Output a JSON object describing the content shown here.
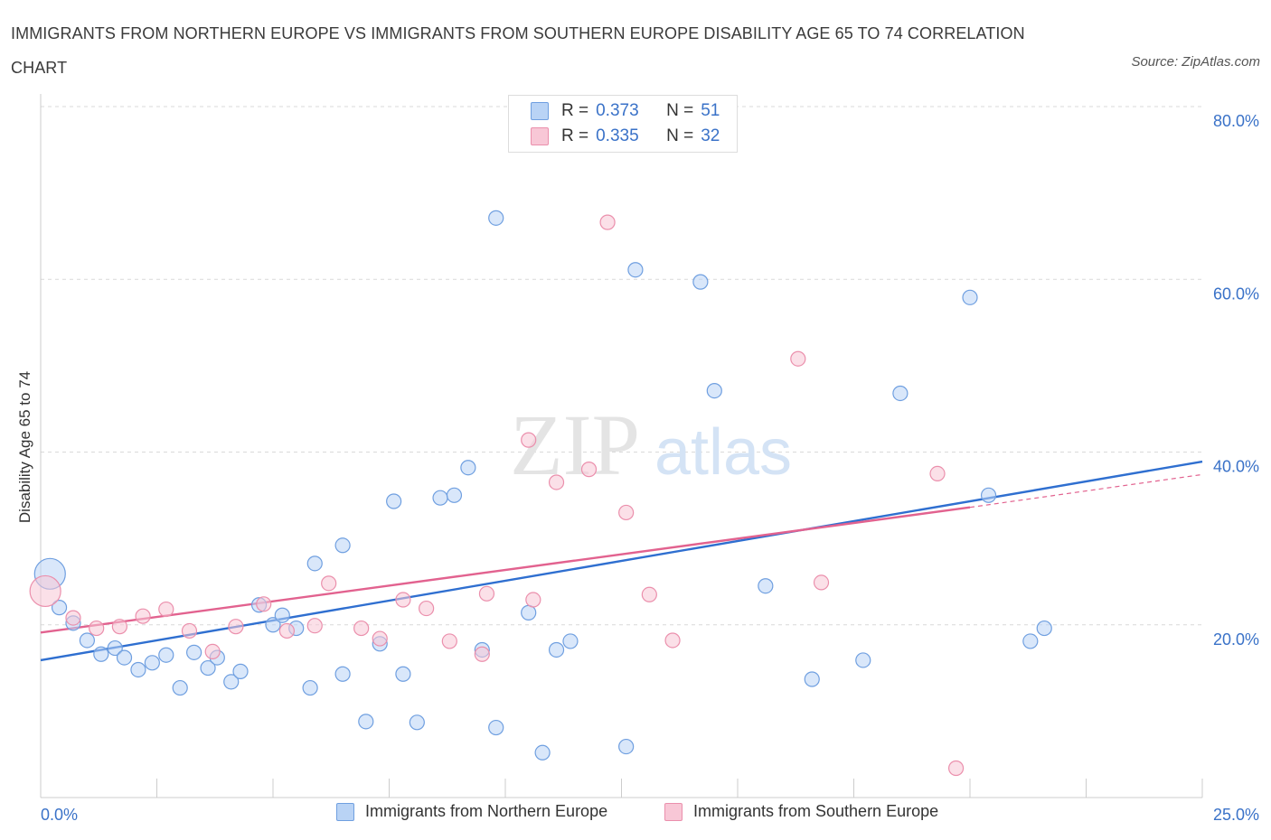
{
  "header": {
    "title": "IMMIGRANTS FROM NORTHERN EUROPE VS IMMIGRANTS FROM SOUTHERN EUROPE DISABILITY AGE 65 TO 74 CORRELATION CHART",
    "source": "Source: ZipAtlas.com"
  },
  "watermark": {
    "zip": "ZIP",
    "atlas": "atlas"
  },
  "legend_top": {
    "rows": [
      {
        "r_label": "R =",
        "r_value": "0.373",
        "n_label": "N =",
        "n_value": "51"
      },
      {
        "r_label": "R =",
        "r_value": "0.335",
        "n_label": "N =",
        "n_value": "32"
      }
    ]
  },
  "legend_bottom": {
    "items": [
      {
        "label": "Immigrants from Northern Europe"
      },
      {
        "label": "Immigrants from Southern Europe"
      }
    ]
  },
  "colors": {
    "blue_fill": "#b9d3f5",
    "blue_stroke": "#6f9fe0",
    "blue_line": "#2f6fd0",
    "pink_fill": "#f8c7d6",
    "pink_stroke": "#eb8fac",
    "pink_line": "#e2628f",
    "tick_label": "#3a72c8",
    "grid": "#d9d9d9"
  },
  "chart_data": {
    "type": "scatter",
    "title": "IMMIGRANTS FROM NORTHERN EUROPE VS IMMIGRANTS FROM SOUTHERN EUROPE DISABILITY AGE 65 TO 74 CORRELATION CHART",
    "xlabel": "",
    "ylabel": "Disability Age 65 to 74",
    "xlim": [
      0,
      25
    ],
    "ylim": [
      0,
      80
    ],
    "x_tick_labels": [
      "0.0%",
      "25.0%"
    ],
    "y_ticks": [
      20,
      40,
      60,
      80
    ],
    "y_tick_labels": [
      "20.0%",
      "40.0%",
      "60.0%",
      "80.0%"
    ],
    "grid": true,
    "legend_position": "top-center",
    "series": [
      {
        "name": "Immigrants from Northern Europe",
        "color": "blue",
        "r": 0.373,
        "n": 51,
        "trend": {
          "x": [
            0,
            25
          ],
          "y": [
            15.9,
            38.9
          ]
        },
        "points": [
          {
            "x": 0.2,
            "y": 25.9,
            "big": true
          },
          {
            "x": 0.4,
            "y": 22.0
          },
          {
            "x": 0.7,
            "y": 20.2
          },
          {
            "x": 1.0,
            "y": 18.2
          },
          {
            "x": 1.3,
            "y": 16.6
          },
          {
            "x": 1.6,
            "y": 17.3
          },
          {
            "x": 1.8,
            "y": 16.2
          },
          {
            "x": 2.1,
            "y": 14.8
          },
          {
            "x": 2.4,
            "y": 15.6
          },
          {
            "x": 2.7,
            "y": 16.5
          },
          {
            "x": 3.0,
            "y": 12.7
          },
          {
            "x": 3.3,
            "y": 16.8
          },
          {
            "x": 3.6,
            "y": 15.0
          },
          {
            "x": 3.8,
            "y": 16.2
          },
          {
            "x": 4.1,
            "y": 13.4
          },
          {
            "x": 4.3,
            "y": 14.6
          },
          {
            "x": 4.7,
            "y": 22.3
          },
          {
            "x": 5.0,
            "y": 20.0
          },
          {
            "x": 5.2,
            "y": 21.1
          },
          {
            "x": 5.5,
            "y": 19.6
          },
          {
            "x": 5.9,
            "y": 27.1
          },
          {
            "x": 5.8,
            "y": 12.7
          },
          {
            "x": 6.5,
            "y": 29.2
          },
          {
            "x": 6.5,
            "y": 14.3
          },
          {
            "x": 7.0,
            "y": 8.8
          },
          {
            "x": 7.3,
            "y": 17.8
          },
          {
            "x": 7.6,
            "y": 34.3
          },
          {
            "x": 7.8,
            "y": 14.3
          },
          {
            "x": 8.1,
            "y": 8.7
          },
          {
            "x": 8.6,
            "y": 34.7
          },
          {
            "x": 8.9,
            "y": 35.0
          },
          {
            "x": 9.2,
            "y": 38.2
          },
          {
            "x": 9.5,
            "y": 17.1
          },
          {
            "x": 9.8,
            "y": 67.1
          },
          {
            "x": 9.8,
            "y": 8.1
          },
          {
            "x": 10.5,
            "y": 21.4
          },
          {
            "x": 10.8,
            "y": 5.2
          },
          {
            "x": 11.1,
            "y": 17.1
          },
          {
            "x": 11.4,
            "y": 18.1
          },
          {
            "x": 12.6,
            "y": 5.9
          },
          {
            "x": 12.8,
            "y": 61.1
          },
          {
            "x": 14.2,
            "y": 59.7
          },
          {
            "x": 14.5,
            "y": 47.1
          },
          {
            "x": 15.6,
            "y": 24.5
          },
          {
            "x": 16.6,
            "y": 13.7
          },
          {
            "x": 17.7,
            "y": 15.9
          },
          {
            "x": 18.5,
            "y": 46.8
          },
          {
            "x": 20.0,
            "y": 57.9
          },
          {
            "x": 20.4,
            "y": 35.0
          },
          {
            "x": 21.3,
            "y": 18.1
          },
          {
            "x": 21.6,
            "y": 19.6
          }
        ]
      },
      {
        "name": "Immigrants from Southern Europe",
        "color": "pink",
        "r": 0.335,
        "n": 32,
        "trend": {
          "x": [
            0,
            20.0
          ],
          "y": [
            19.1,
            33.6
          ]
        },
        "trend_extension": {
          "x": [
            20.0,
            25
          ],
          "y": [
            33.6,
            37.4
          ]
        },
        "points": [
          {
            "x": 0.1,
            "y": 23.9,
            "big": true
          },
          {
            "x": 0.7,
            "y": 20.8
          },
          {
            "x": 1.2,
            "y": 19.6
          },
          {
            "x": 1.7,
            "y": 19.8
          },
          {
            "x": 2.2,
            "y": 21.0
          },
          {
            "x": 2.7,
            "y": 21.8
          },
          {
            "x": 3.2,
            "y": 19.3
          },
          {
            "x": 3.7,
            "y": 16.9
          },
          {
            "x": 4.2,
            "y": 19.8
          },
          {
            "x": 4.8,
            "y": 22.4
          },
          {
            "x": 5.3,
            "y": 19.3
          },
          {
            "x": 5.9,
            "y": 19.9
          },
          {
            "x": 6.2,
            "y": 24.8
          },
          {
            "x": 6.9,
            "y": 19.6
          },
          {
            "x": 7.3,
            "y": 18.4
          },
          {
            "x": 7.8,
            "y": 22.9
          },
          {
            "x": 8.3,
            "y": 21.9
          },
          {
            "x": 8.8,
            "y": 18.1
          },
          {
            "x": 9.5,
            "y": 16.6
          },
          {
            "x": 9.6,
            "y": 23.6
          },
          {
            "x": 10.5,
            "y": 41.4
          },
          {
            "x": 10.6,
            "y": 22.9
          },
          {
            "x": 11.1,
            "y": 36.5
          },
          {
            "x": 11.8,
            "y": 38.0
          },
          {
            "x": 12.2,
            "y": 66.6
          },
          {
            "x": 12.6,
            "y": 33.0
          },
          {
            "x": 13.1,
            "y": 23.5
          },
          {
            "x": 13.6,
            "y": 18.2
          },
          {
            "x": 16.3,
            "y": 50.8
          },
          {
            "x": 16.8,
            "y": 24.9
          },
          {
            "x": 19.3,
            "y": 37.5
          },
          {
            "x": 19.7,
            "y": 3.4
          }
        ]
      }
    ]
  }
}
